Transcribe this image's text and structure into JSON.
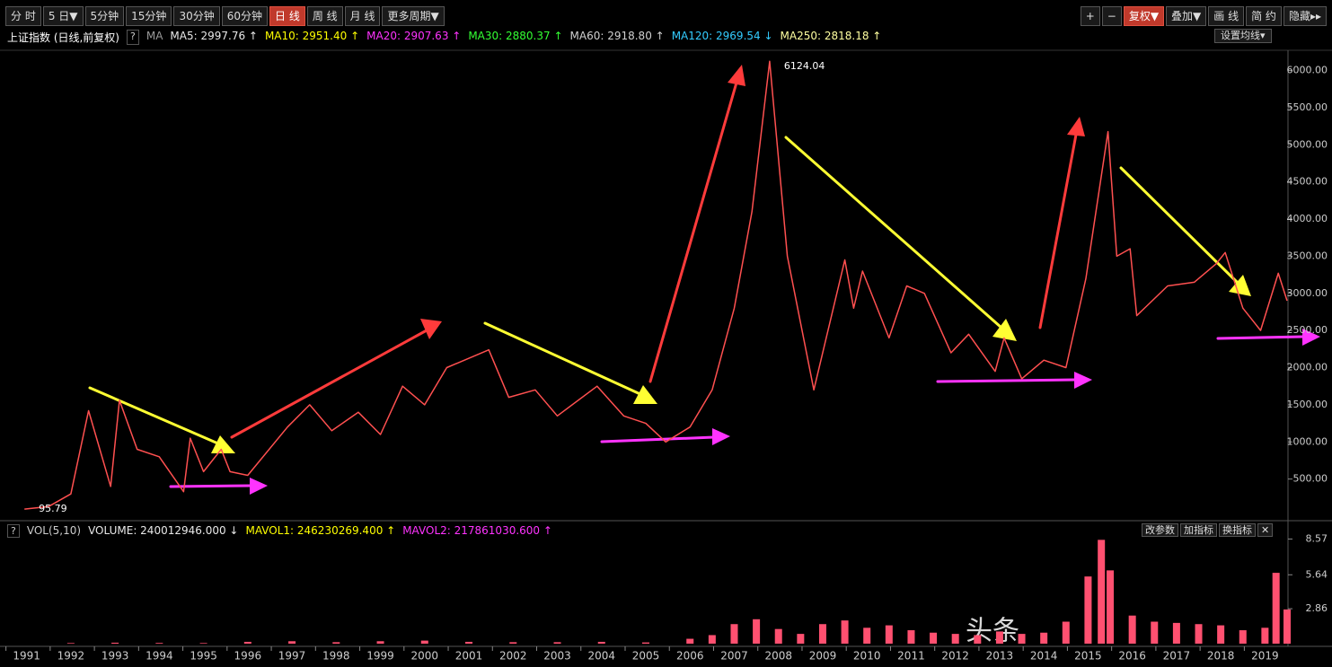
{
  "toolbar": {
    "left": [
      "分 时",
      "5 日▼",
      "5分钟",
      "15分钟",
      "30分钟",
      "60分钟",
      "日 线",
      "周 线",
      "月 线",
      "更多周期▼"
    ],
    "active": "日 线",
    "right": [
      "+",
      "−",
      "复权▼",
      "叠加▼",
      "画 线",
      "简 约",
      "隐藏▸▸"
    ],
    "right_active": "复权▼"
  },
  "info": {
    "title": "上证指数 (日线,前复权)",
    "help": "?",
    "indicator": "MA",
    "items": [
      {
        "text": "MA5: 2997.76 ↑",
        "color": "#e8e8e8"
      },
      {
        "text": "MA10: 2951.40 ↑",
        "color": "#ffff00"
      },
      {
        "text": "MA20: 2907.63 ↑",
        "color": "#ff33ff"
      },
      {
        "text": "MA30: 2880.37 ↑",
        "color": "#33ff33"
      },
      {
        "text": "MA60: 2918.80 ↑",
        "color": "#d0d0d0"
      },
      {
        "text": "MA120: 2969.54 ↓",
        "color": "#33ccff"
      },
      {
        "text": "MA250: 2818.18 ↑",
        "color": "#ffffa0"
      }
    ],
    "settings": "设置均线▾"
  },
  "volume_info": {
    "help": "?",
    "indicator": "VOL(5,10)",
    "items": [
      {
        "text": "VOLUME: 240012946.000 ↓",
        "color": "#e8e8e8"
      },
      {
        "text": "MAVOL1: 246230269.400 ↑",
        "color": "#ffff00"
      },
      {
        "text": "MAVOL2: 217861030.600 ↑",
        "color": "#ff33ff"
      }
    ],
    "buttons": [
      "改参数",
      "加指标",
      "换指标",
      "✕"
    ]
  },
  "watermark": "头条",
  "chart_data": [
    {
      "type": "line",
      "xlim": [
        1990.5,
        2019.5
      ],
      "ylim": [
        0,
        6200
      ],
      "xticks": [
        1991,
        1992,
        1993,
        1994,
        1995,
        1996,
        1997,
        1998,
        1999,
        2000,
        2001,
        2002,
        2003,
        2004,
        2005,
        2006,
        2007,
        2008,
        2009,
        2010,
        2011,
        2012,
        2013,
        2014,
        2015,
        2016,
        2017,
        2018,
        2019
      ],
      "yticks": [
        {
          "value": 500,
          "label": "500.00"
        },
        {
          "value": 1000,
          "label": "1000.00"
        },
        {
          "value": 1500,
          "label": "1500.00"
        },
        {
          "value": 2000,
          "label": "2000.00"
        },
        {
          "value": 2500,
          "label": "2500.00"
        },
        {
          "value": 3000,
          "label": "3000.00"
        },
        {
          "value": 3500,
          "label": "3500.00"
        },
        {
          "value": 4000,
          "label": "4000.00"
        },
        {
          "value": 4500,
          "label": "4500.00"
        },
        {
          "value": 5000,
          "label": "5000.00"
        },
        {
          "value": 5500,
          "label": "5500.00"
        },
        {
          "value": 6000,
          "label": "6000.00"
        }
      ],
      "x": [
        1990.95,
        1991.5,
        1992.0,
        1992.4,
        1992.9,
        1993.1,
        1993.5,
        1994.0,
        1994.55,
        1994.7,
        1995.0,
        1995.4,
        1995.6,
        1996.0,
        1996.9,
        1997.4,
        1997.9,
        1998.5,
        1999.0,
        1999.5,
        2000.0,
        2000.5,
        2001.45,
        2001.9,
        2002.5,
        2003.0,
        2003.9,
        2004.5,
        2005.0,
        2005.45,
        2006.0,
        2006.5,
        2007.0,
        2007.4,
        2007.8,
        2008.2,
        2008.8,
        2009.5,
        2009.7,
        2009.9,
        2010.5,
        2010.9,
        2011.3,
        2011.9,
        2012.3,
        2012.9,
        2013.1,
        2013.5,
        2014.0,
        2014.5,
        2014.95,
        2015.45,
        2015.65,
        2015.95,
        2016.1,
        2016.8,
        2017.4,
        2017.9,
        2018.1,
        2018.5,
        2018.9,
        2019.3,
        2019.5
      ],
      "series": [
        {
          "color": "#ff5050",
          "values": [
            95.79,
            130,
            300,
            1420,
            400,
            1560,
            900,
            800,
            330,
            1050,
            600,
            900,
            600,
            550,
            1200,
            1500,
            1150,
            1400,
            1100,
            1750,
            1500,
            2000,
            2240,
            1600,
            1700,
            1350,
            1750,
            1350,
            1250,
            1000,
            1200,
            1700,
            2800,
            4100,
            6124.04,
            3500,
            1700,
            3450,
            2800,
            3300,
            2400,
            3100,
            3000,
            2200,
            2450,
            1950,
            2400,
            1850,
            2100,
            2000,
            3200,
            5178,
            3500,
            3600,
            2700,
            3100,
            3150,
            3400,
            3550,
            2800,
            2500,
            3270,
            2900
          ],
          "value_labels": [
            "95.79",
            null,
            null,
            null,
            null,
            null,
            null,
            null,
            null,
            null,
            null,
            null,
            null,
            null,
            null,
            null,
            null,
            null,
            null,
            null,
            null,
            null,
            null,
            null,
            null,
            null,
            null,
            null,
            null,
            null,
            null,
            null,
            null,
            null,
            "6124.04",
            null,
            null,
            null,
            null,
            null,
            null,
            null,
            null,
            null,
            null,
            null,
            null,
            null,
            null,
            null,
            null,
            null,
            null,
            null,
            null,
            null,
            null,
            null,
            null,
            null,
            null,
            null,
            null
          ]
        }
      ]
    },
    {
      "type": "bar",
      "xlim": [
        1990.5,
        2019.5
      ],
      "ylim": [
        0,
        8.6
      ],
      "yticks": [
        2.86,
        5.64,
        8.57
      ],
      "x": [
        1992,
        1993,
        1994,
        1995,
        1996,
        1997,
        1998,
        1999,
        2000,
        2001,
        2002,
        2003,
        2004,
        2005,
        2006,
        2006.5,
        2007,
        2007.5,
        2008,
        2008.5,
        2009,
        2009.5,
        2010,
        2010.5,
        2011,
        2011.5,
        2012,
        2012.5,
        2013,
        2013.5,
        2014,
        2014.5,
        2015,
        2015.3,
        2015.5,
        2016,
        2016.5,
        2017,
        2017.5,
        2018,
        2018.5,
        2019,
        2019.25,
        2019.5
      ],
      "color": "#ff5070",
      "values": [
        0.05,
        0.08,
        0.06,
        0.05,
        0.15,
        0.2,
        0.12,
        0.2,
        0.25,
        0.15,
        0.12,
        0.12,
        0.15,
        0.1,
        0.4,
        0.7,
        1.6,
        2.0,
        1.2,
        0.8,
        1.6,
        1.9,
        1.3,
        1.5,
        1.1,
        0.9,
        0.8,
        0.7,
        1.0,
        0.8,
        0.9,
        1.8,
        5.5,
        8.5,
        6.0,
        2.3,
        1.8,
        1.7,
        1.6,
        1.5,
        1.1,
        1.3,
        5.8,
        2.8
      ]
    }
  ]
}
